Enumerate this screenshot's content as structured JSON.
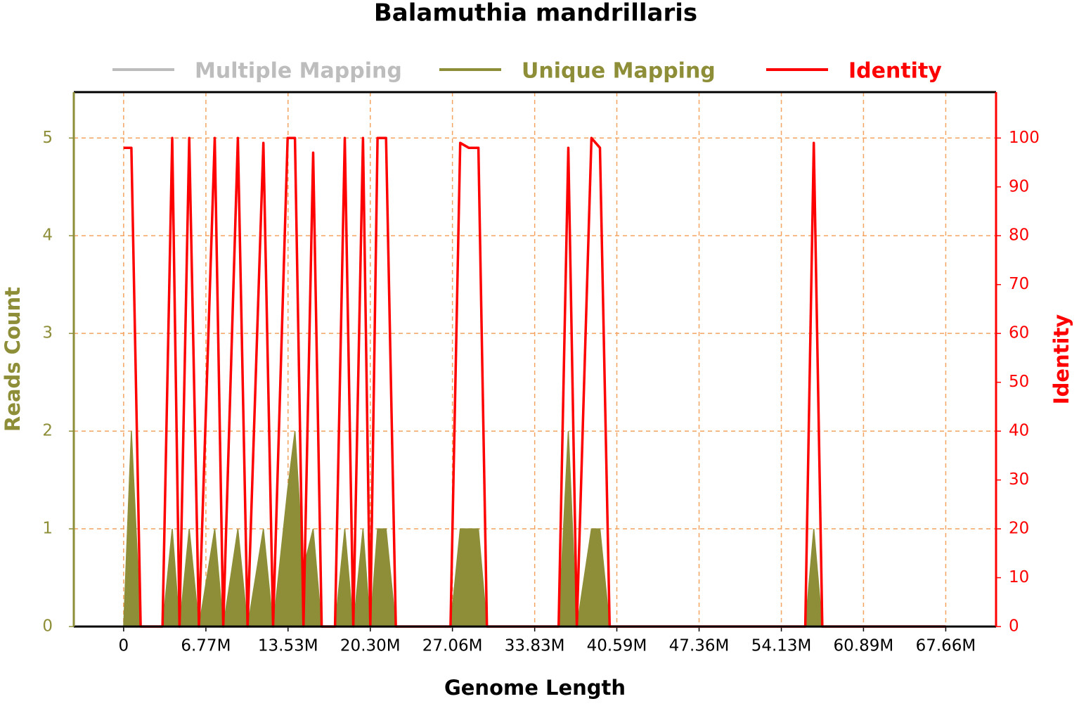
{
  "chart_data": {
    "type": "line",
    "title": "Balamuthia mandrillaris",
    "x_label": "Genome Length",
    "y_label": "Reads Count",
    "y2_label": "Identity",
    "x": [
      0,
      0.64,
      1.4,
      3.2,
      4.0,
      4.6,
      5.4,
      6.2,
      7.5,
      8.2,
      9.4,
      10.2,
      11.5,
      12.3,
      13.5,
      14.1,
      14.8,
      15.6,
      16.3,
      17.4,
      18.2,
      18.9,
      19.7,
      20.3,
      20.9,
      21.6,
      22.4,
      26.9,
      27.7,
      28.4,
      29.2,
      29.9,
      35.8,
      36.6,
      37.3,
      38.5,
      39.2,
      40.0,
      56.1,
      56.8,
      57.5,
      67.66
    ],
    "series": [
      {
        "name": "Multiple Mapping",
        "color": "#bdbdbd",
        "kind": "line",
        "values": [
          0,
          0,
          0,
          0,
          0,
          0,
          0,
          0,
          0,
          0,
          0,
          0,
          0,
          0,
          0,
          0,
          0,
          0,
          0,
          0,
          0,
          0,
          0,
          0,
          0,
          0,
          0,
          0,
          0,
          0,
          0,
          0,
          0,
          0,
          0,
          0,
          0,
          0,
          0,
          0,
          0,
          0
        ]
      },
      {
        "name": "Unique Mapping",
        "color": "#8e8e38",
        "kind": "area",
        "values": [
          0,
          2,
          0,
          0,
          1,
          0,
          1,
          0,
          1,
          0,
          1,
          0,
          1,
          0,
          1.4,
          2,
          0.6,
          1,
          0,
          0,
          1,
          0,
          1,
          0,
          1,
          1,
          0,
          0,
          1,
          1,
          1,
          0,
          0,
          2,
          0,
          1,
          1,
          0,
          0,
          1,
          0,
          0
        ]
      },
      {
        "name": "Identity",
        "color": "#ff0000",
        "kind": "line",
        "axis": "y2",
        "values": [
          98,
          98,
          0,
          0,
          100,
          0,
          100,
          0,
          100,
          0,
          100,
          0,
          99,
          0,
          100,
          100,
          0,
          97,
          0,
          0,
          100,
          0,
          100,
          0,
          100,
          100,
          0,
          0,
          99,
          98,
          98,
          0,
          0,
          98,
          0,
          100,
          98,
          0,
          0,
          99,
          0,
          0
        ]
      }
    ],
    "xlim": [
      -4.1,
      71.8
    ],
    "xticks": [
      0,
      {
        "value": 6.77,
        "label": "6.77M"
      },
      {
        "value": 13.53,
        "label": "13.53M"
      },
      {
        "value": 20.3,
        "label": "20.30M"
      },
      {
        "value": 27.06,
        "label": "27.06M"
      },
      {
        "value": 33.83,
        "label": "33.83M"
      },
      {
        "value": 40.59,
        "label": "40.59M"
      },
      {
        "value": 47.36,
        "label": "47.36M"
      },
      {
        "value": 54.13,
        "label": "54.13M"
      },
      {
        "value": 60.89,
        "label": "60.89M"
      },
      {
        "value": 67.66,
        "label": "67.66M"
      }
    ],
    "ylim": [
      0,
      5.47
    ],
    "yticks": [
      0,
      1,
      2,
      3,
      4,
      5
    ],
    "y2lim": [
      0,
      109.4
    ],
    "y2ticks": [
      0,
      10,
      20,
      30,
      40,
      50,
      60,
      70,
      80,
      90,
      100
    ],
    "grid": true,
    "grid_color": "#f4a460",
    "y_color": "#8e8e38",
    "y2_color": "#ff0000"
  }
}
